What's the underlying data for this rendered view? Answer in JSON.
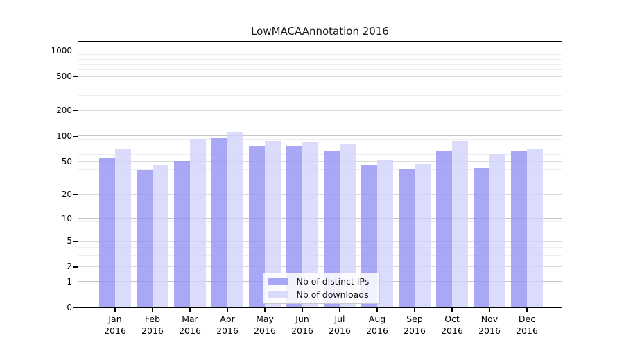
{
  "chart_data": {
    "type": "bar",
    "title": "LowMACAAnnotation 2016",
    "categories": [
      "Jan",
      "Feb",
      "Mar",
      "Apr",
      "May",
      "Jun",
      "Jul",
      "Aug",
      "Sep",
      "Oct",
      "Nov",
      "Dec"
    ],
    "x_year": "2016",
    "series": [
      {
        "name": "Nb of distinct IPs",
        "key": "distinct-ips",
        "color": "rgba(146,146,245,0.8)",
        "values": [
          54,
          39,
          50,
          93,
          76,
          75,
          65,
          45,
          40,
          65,
          41,
          67
        ]
      },
      {
        "name": "Nb of downloads",
        "key": "downloads",
        "color": "rgba(210,210,250,0.8)",
        "values": [
          70,
          45,
          90,
          110,
          86,
          84,
          79,
          52,
          46,
          86,
          60,
          70
        ]
      }
    ],
    "y_scale": "log1p",
    "ylim": [
      0,
      1000
    ],
    "y_ticks": [
      0,
      1,
      2,
      5,
      10,
      20,
      50,
      100,
      200,
      500,
      1000
    ],
    "y_minor_ticks": [
      3,
      4,
      6,
      7,
      8,
      9,
      30,
      40,
      60,
      70,
      80,
      90,
      300,
      400,
      600,
      700,
      800,
      900
    ],
    "grid": true,
    "legend_position": "bottom-center"
  },
  "colors": {
    "ips_bar_final": "#aaaaf8",
    "downloads_bar_final": "#dbdbfb",
    "grid_power10": "#c6c6c6",
    "grid_labeled": "#dadada",
    "grid_minor": "#eeeeee",
    "axis": "#000000",
    "legend_border": "#c9c9c9"
  }
}
